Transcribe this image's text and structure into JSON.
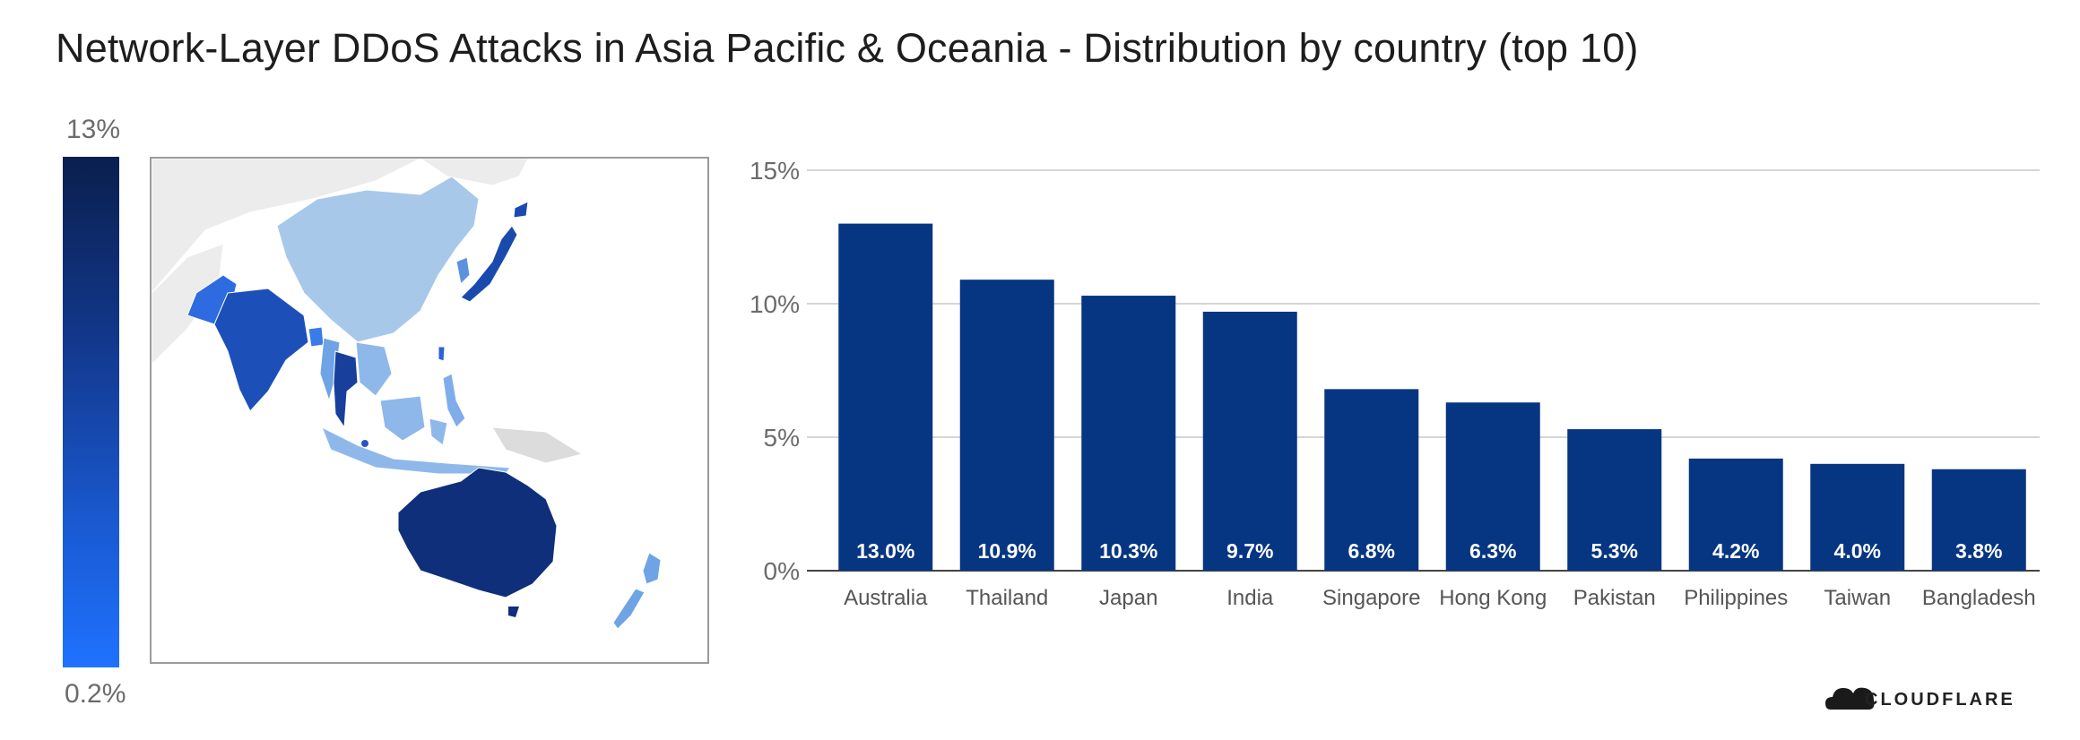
{
  "title": "Network-Layer DDoS Attacks in Asia Pacific & Oceania - Distribution by country (top 10)",
  "legend": {
    "max_label": "13%",
    "min_label": "0.2%"
  },
  "brand": {
    "name": "CLOUDFLARE"
  },
  "colors": {
    "bar": "#063681",
    "grid": "#c8c8c8",
    "axis": "#444444"
  },
  "chart_data": {
    "type": "bar",
    "title": "Network-Layer DDoS Attacks in Asia Pacific & Oceania - Distribution by country (top 10)",
    "categories": [
      "Australia",
      "Thailand",
      "Japan",
      "India",
      "Singapore",
      "Hong Kong",
      "Pakistan",
      "Philippines",
      "Taiwan",
      "Bangladesh"
    ],
    "values": [
      13.0,
      10.9,
      10.3,
      9.7,
      6.8,
      6.3,
      5.3,
      4.2,
      4.0,
      3.8
    ],
    "value_labels": [
      "13.0%",
      "10.9%",
      "10.3%",
      "9.7%",
      "6.8%",
      "6.3%",
      "5.3%",
      "4.2%",
      "4.0%",
      "3.8%"
    ],
    "yticks": [
      0,
      5,
      10,
      15
    ],
    "ytick_labels": [
      "0%",
      "5%",
      "10%",
      "15%"
    ],
    "ylim": [
      0,
      15
    ],
    "xlabel": "",
    "ylabel": "",
    "grid": true
  }
}
